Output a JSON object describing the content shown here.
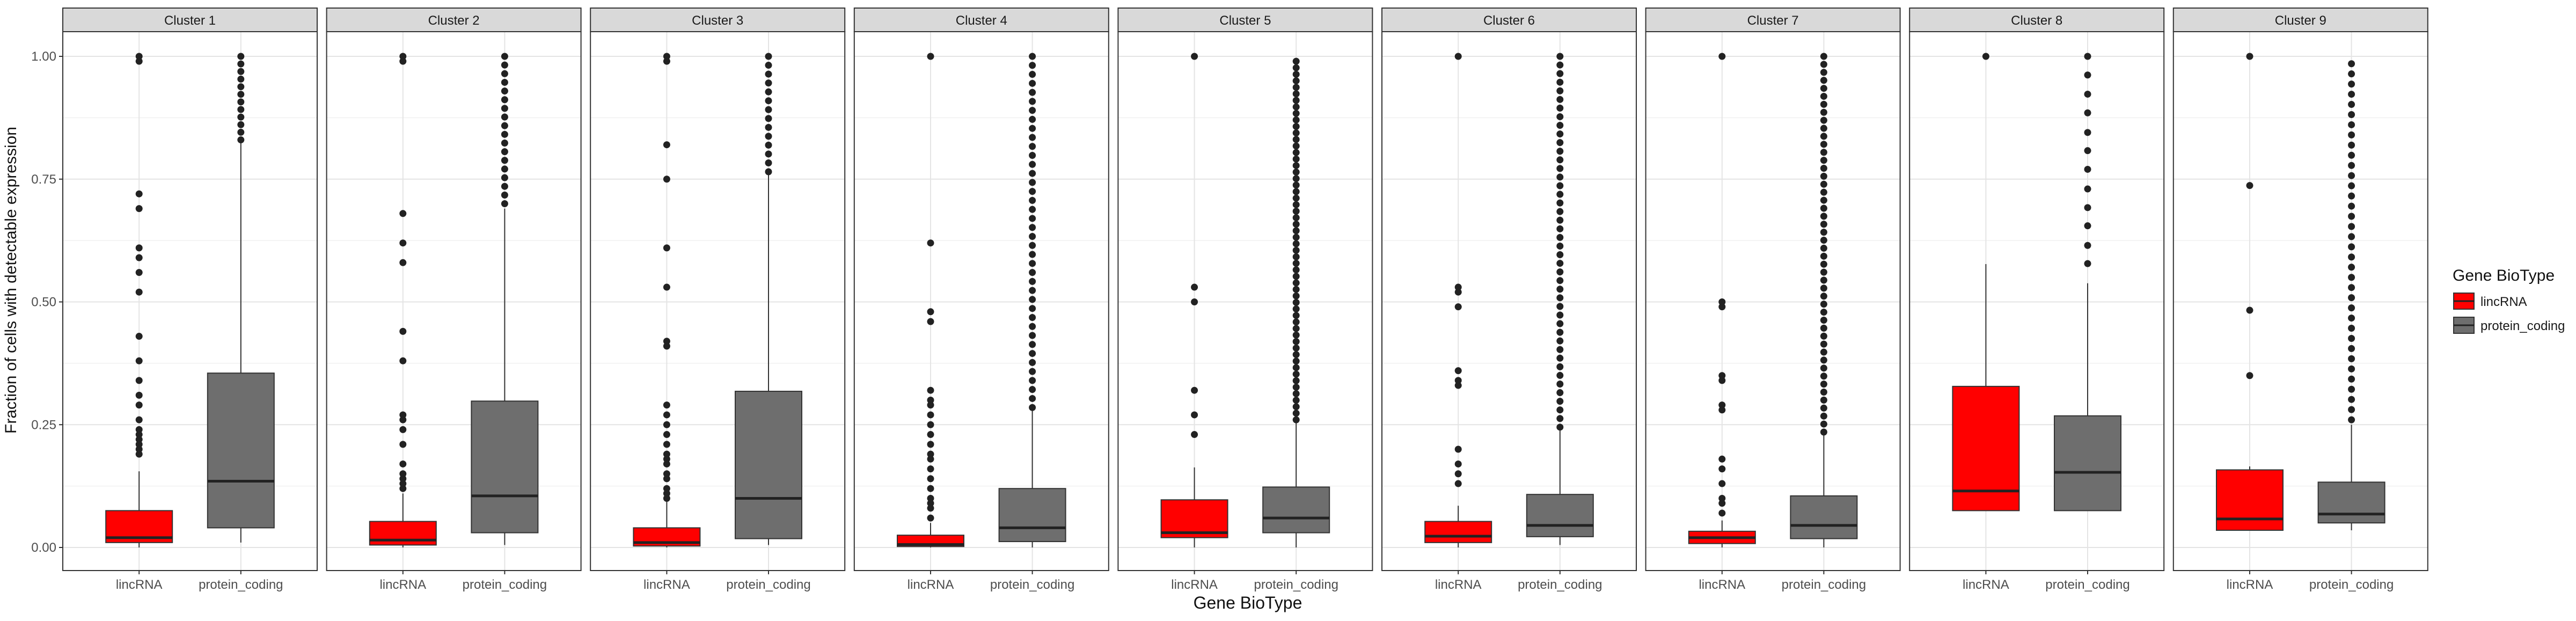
{
  "chart_data": {
    "type": "boxplot",
    "facet_variable": "Cluster",
    "xlabel": "Gene BioType",
    "ylabel": "Fraction of cells with detectable expression",
    "ylim": [
      0,
      1
    ],
    "y_ticks": [
      "0.00",
      "0.25",
      "0.50",
      "0.75",
      "1.00"
    ],
    "y_tick_values": [
      0,
      0.25,
      0.5,
      0.75,
      1.0
    ],
    "categories": [
      "lincRNA",
      "protein_coding"
    ],
    "grid": true,
    "legend": {
      "title": "Gene BioType",
      "position": "right",
      "entries": [
        {
          "label": "lincRNA",
          "color": "#ff0000"
        },
        {
          "label": "protein_coding",
          "color": "#6e6e6e"
        }
      ]
    },
    "colors": {
      "lincRNA": "#ff0000",
      "protein_coding": "#6e6e6e",
      "strip": "#d9d9d9",
      "outlier": "#222222"
    },
    "panels": [
      {
        "title": "Cluster 1",
        "boxes": [
          {
            "category": "lincRNA",
            "whisker_low": 0.0,
            "q1": 0.01,
            "median": 0.02,
            "q3": 0.075,
            "whisker_high": 0.155,
            "outliers": [
              0.19,
              0.2,
              0.21,
              0.22,
              0.23,
              0.24,
              0.26,
              0.29,
              0.31,
              0.34,
              0.38,
              0.43,
              0.52,
              0.56,
              0.59,
              0.61,
              0.69,
              0.72,
              0.99,
              1.0
            ],
            "outlier_bands": []
          },
          {
            "category": "protein_coding",
            "whisker_low": 0.01,
            "q1": 0.04,
            "median": 0.135,
            "q3": 0.355,
            "whisker_high": 0.825,
            "outliers": [],
            "outlier_bands": [
              [
                0.83,
                1.0,
                12
              ]
            ]
          }
        ]
      },
      {
        "title": "Cluster 2",
        "boxes": [
          {
            "category": "lincRNA",
            "whisker_low": 0.0,
            "q1": 0.005,
            "median": 0.015,
            "q3": 0.053,
            "whisker_high": 0.11,
            "outliers": [
              0.12,
              0.13,
              0.14,
              0.15,
              0.17,
              0.21,
              0.24,
              0.26,
              0.27,
              0.38,
              0.44,
              0.58,
              0.62,
              0.68,
              0.99,
              1.0
            ],
            "outlier_bands": []
          },
          {
            "category": "protein_coding",
            "whisker_low": 0.005,
            "q1": 0.03,
            "median": 0.105,
            "q3": 0.298,
            "whisker_high": 0.69,
            "outliers": [],
            "outlier_bands": [
              [
                0.7,
                1.0,
                18
              ]
            ]
          }
        ]
      },
      {
        "title": "Cluster 3",
        "boxes": [
          {
            "category": "lincRNA",
            "whisker_low": 0.0,
            "q1": 0.003,
            "median": 0.01,
            "q3": 0.04,
            "whisker_high": 0.095,
            "outliers": [
              0.1,
              0.11,
              0.12,
              0.14,
              0.15,
              0.17,
              0.18,
              0.19,
              0.21,
              0.23,
              0.25,
              0.27,
              0.29,
              0.41,
              0.42,
              0.53,
              0.61,
              0.75,
              0.82,
              0.99,
              1.0
            ],
            "outlier_bands": []
          },
          {
            "category": "protein_coding",
            "whisker_low": 0.005,
            "q1": 0.018,
            "median": 0.1,
            "q3": 0.318,
            "whisker_high": 0.76,
            "outliers": [],
            "outlier_bands": [
              [
                0.765,
                1.0,
                14
              ]
            ]
          }
        ]
      },
      {
        "title": "Cluster 4",
        "boxes": [
          {
            "category": "lincRNA",
            "whisker_low": 0.0,
            "q1": 0.002,
            "median": 0.006,
            "q3": 0.025,
            "whisker_high": 0.05,
            "outliers": [
              0.06,
              0.08,
              0.09,
              0.1,
              0.12,
              0.14,
              0.16,
              0.18,
              0.19,
              0.21,
              0.23,
              0.25,
              0.27,
              0.29,
              0.3,
              0.32,
              0.46,
              0.48,
              0.62,
              1.0
            ],
            "outlier_bands": []
          },
          {
            "category": "protein_coding",
            "whisker_low": 0.0,
            "q1": 0.012,
            "median": 0.04,
            "q3": 0.12,
            "whisker_high": 0.28,
            "outliers": [],
            "outlier_bands": [
              [
                0.285,
                1.0,
                40
              ]
            ]
          }
        ]
      },
      {
        "title": "Cluster 5",
        "boxes": [
          {
            "category": "lincRNA",
            "whisker_low": 0.0,
            "q1": 0.02,
            "median": 0.03,
            "q3": 0.097,
            "whisker_high": 0.163,
            "outliers": [
              0.23,
              0.27,
              0.32,
              0.5,
              0.53,
              1.0
            ],
            "outlier_bands": []
          },
          {
            "category": "protein_coding",
            "whisker_low": 0.0,
            "q1": 0.03,
            "median": 0.06,
            "q3": 0.123,
            "whisker_high": 0.255,
            "outliers": [],
            "outlier_bands": [
              [
                0.26,
                0.99,
                56
              ]
            ]
          }
        ]
      },
      {
        "title": "Cluster 6",
        "boxes": [
          {
            "category": "lincRNA",
            "whisker_low": 0.0,
            "q1": 0.01,
            "median": 0.023,
            "q3": 0.053,
            "whisker_high": 0.085,
            "outliers": [
              0.13,
              0.15,
              0.17,
              0.2,
              0.33,
              0.34,
              0.36,
              0.49,
              0.52,
              0.53,
              1.0
            ],
            "outlier_bands": []
          },
          {
            "category": "protein_coding",
            "whisker_low": 0.005,
            "q1": 0.022,
            "median": 0.045,
            "q3": 0.108,
            "whisker_high": 0.24,
            "outliers": [],
            "outlier_bands": [
              [
                0.245,
                1.0,
                44
              ]
            ]
          }
        ]
      },
      {
        "title": "Cluster 7",
        "boxes": [
          {
            "category": "lincRNA",
            "whisker_low": 0.0,
            "q1": 0.008,
            "median": 0.02,
            "q3": 0.033,
            "whisker_high": 0.055,
            "outliers": [
              0.07,
              0.09,
              0.1,
              0.13,
              0.16,
              0.18,
              0.28,
              0.29,
              0.34,
              0.35,
              0.49,
              0.5,
              1.0
            ],
            "outlier_bands": []
          },
          {
            "category": "protein_coding",
            "whisker_low": 0.0,
            "q1": 0.018,
            "median": 0.045,
            "q3": 0.105,
            "whisker_high": 0.23,
            "outliers": [],
            "outlier_bands": [
              [
                0.235,
                1.0,
                48
              ]
            ]
          }
        ]
      },
      {
        "title": "Cluster 8",
        "boxes": [
          {
            "category": "lincRNA",
            "whisker_low": 0.075,
            "q1": 0.075,
            "median": 0.115,
            "q3": 0.328,
            "whisker_high": 0.577,
            "outliers": [
              1.0
            ],
            "outlier_bands": []
          },
          {
            "category": "protein_coding",
            "whisker_low": 0.075,
            "q1": 0.075,
            "median": 0.153,
            "q3": 0.268,
            "whisker_high": 0.538,
            "outliers": [
              0.578,
              0.615,
              0.655,
              0.692,
              0.73,
              0.77,
              0.808,
              0.845,
              0.885,
              0.923,
              0.962,
              1.0
            ],
            "outlier_bands": []
          }
        ]
      },
      {
        "title": "Cluster 9",
        "boxes": [
          {
            "category": "lincRNA",
            "whisker_low": 0.035,
            "q1": 0.035,
            "median": 0.058,
            "q3": 0.158,
            "whisker_high": 0.165,
            "outliers": [
              0.35,
              0.483,
              0.737,
              1.0
            ],
            "outlier_bands": []
          },
          {
            "category": "protein_coding",
            "whisker_low": 0.035,
            "q1": 0.05,
            "median": 0.068,
            "q3": 0.133,
            "whisker_high": 0.25,
            "outliers": [],
            "outlier_bands": [
              [
                0.26,
                0.985,
                36
              ]
            ]
          }
        ]
      }
    ]
  }
}
